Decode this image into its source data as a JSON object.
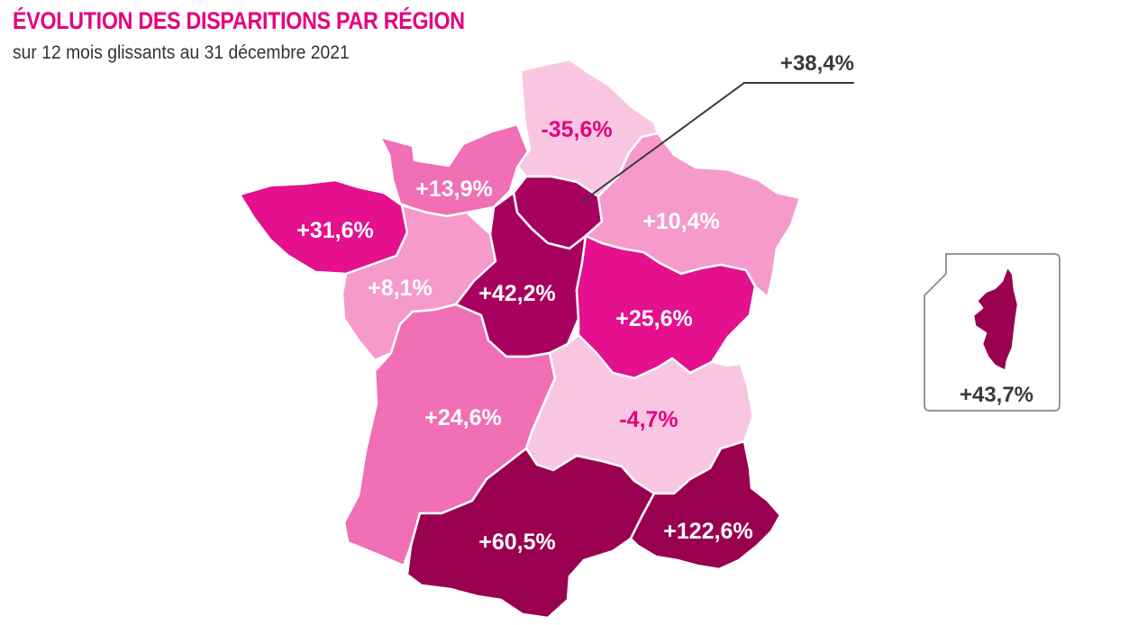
{
  "title": "ÉVOLUTION DES DISPARITIONS PAR RÉGION",
  "subtitle": "sur 12 mois glissants au 31 décembre 2021",
  "colors": {
    "title": "#e6007e",
    "level_lightest": "#f9c6e2",
    "level_light": "#f59acb",
    "level_medium": "#f06fb5",
    "level_strong": "#e4108e",
    "level_dark": "#a8005f",
    "level_darkest": "#99004f",
    "label_on_light": "#e6007e",
    "label_on_dark": "#ffffff",
    "callout_line": "#3a3a3a",
    "inset_border": "#8a9aa0"
  },
  "regions": [
    {
      "id": "hauts-de-france",
      "value": "-35,6%",
      "level": "lightest"
    },
    {
      "id": "normandie",
      "value": "+13,9%",
      "level": "medium"
    },
    {
      "id": "bretagne",
      "value": "+31,6%",
      "level": "strong"
    },
    {
      "id": "pays-de-la-loire",
      "value": "+8,1%",
      "level": "light"
    },
    {
      "id": "ile-de-france",
      "value": "+38,4%",
      "level": "dark"
    },
    {
      "id": "centre-val-de-loire",
      "value": "+42,2%",
      "level": "dark"
    },
    {
      "id": "grand-est",
      "value": "+10,4%",
      "level": "light"
    },
    {
      "id": "bourgogne-franche-comte",
      "value": "+25,6%",
      "level": "strong"
    },
    {
      "id": "nouvelle-aquitaine",
      "value": "+24,6%",
      "level": "medium"
    },
    {
      "id": "auvergne-rhone-alpes",
      "value": "-4,7%",
      "level": "lightest"
    },
    {
      "id": "occitanie",
      "value": "+60,5%",
      "level": "darkest"
    },
    {
      "id": "provence-alpes-cote-d-azur",
      "value": "+122,6%",
      "level": "darkest"
    },
    {
      "id": "corse",
      "value": "+43,7%",
      "level": "darkest"
    }
  ]
}
